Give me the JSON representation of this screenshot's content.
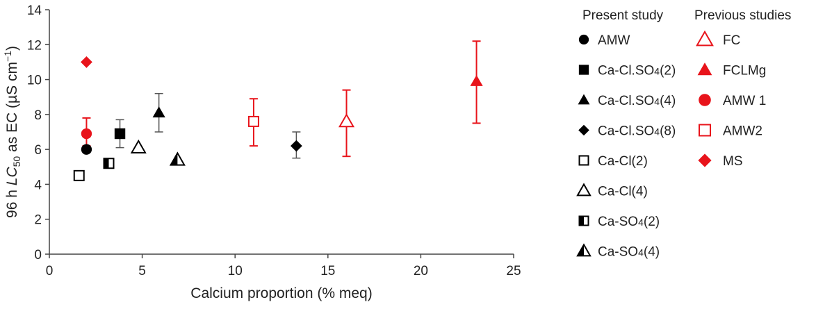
{
  "chart_data": {
    "type": "scatter",
    "xlabel": "Calcium proportion (% meq)",
    "ylabel": "96 h LC50 as EC (µS cm−1)",
    "ylabel_parts": {
      "pre": "96 h ",
      "lc": "LC",
      "sub": "50",
      "post": " as EC (µS cm",
      "sup": "−1",
      "close": ")"
    },
    "xlim": [
      0,
      25
    ],
    "ylim": [
      0,
      14
    ],
    "xticks": [
      0,
      5,
      10,
      15,
      20,
      25
    ],
    "yticks": [
      0,
      2,
      4,
      6,
      8,
      10,
      12,
      14
    ],
    "grid": false,
    "legend_placement": "right",
    "legend_groups": [
      "Present study",
      "Previous studies"
    ],
    "colors": {
      "black": "#000000",
      "red": "#e8141b",
      "errorbar_gray": "#555555"
    },
    "series": [
      {
        "name": "AMW",
        "group": "Present study",
        "marker": "circle-filled",
        "color": "#000000",
        "points": [
          {
            "x": 2.0,
            "y": 6.0
          }
        ]
      },
      {
        "name": "Ca-Cl.SO4(2)",
        "group": "Present study",
        "marker": "square-filled",
        "color": "#000000",
        "points": [
          {
            "x": 3.8,
            "y": 6.9,
            "ylow": 6.1,
            "yhigh": 7.7
          }
        ]
      },
      {
        "name": "Ca-Cl.SO4(4)",
        "group": "Present study",
        "marker": "triangle-filled",
        "color": "#000000",
        "points": [
          {
            "x": 5.9,
            "y": 8.1,
            "ylow": 7.0,
            "yhigh": 9.2
          }
        ]
      },
      {
        "name": "Ca-Cl.SO4(8)",
        "group": "Present study",
        "marker": "diamond-filled",
        "color": "#000000",
        "points": [
          {
            "x": 13.3,
            "y": 6.2,
            "ylow": 5.5,
            "yhigh": 7.0
          }
        ]
      },
      {
        "name": "Ca-Cl(2)",
        "group": "Present study",
        "marker": "square-open",
        "color": "#000000",
        "points": [
          {
            "x": 1.6,
            "y": 4.5
          }
        ]
      },
      {
        "name": "Ca-Cl(4)",
        "group": "Present study",
        "marker": "triangle-open",
        "color": "#000000",
        "points": [
          {
            "x": 4.8,
            "y": 6.1
          }
        ]
      },
      {
        "name": "Ca-SO4(2)",
        "group": "Present study",
        "marker": "square-half",
        "color": "#000000",
        "points": [
          {
            "x": 3.2,
            "y": 5.2
          }
        ]
      },
      {
        "name": "Ca-SO4(4)",
        "group": "Present study",
        "marker": "triangle-half",
        "color": "#000000",
        "points": [
          {
            "x": 6.9,
            "y": 5.4
          }
        ]
      },
      {
        "name": "FC",
        "group": "Previous studies",
        "marker": "triangle-open",
        "color": "#e8141b",
        "points": [
          {
            "x": 16.0,
            "y": 7.6,
            "ylow": 5.6,
            "yhigh": 9.4
          }
        ]
      },
      {
        "name": "FCLMg",
        "group": "Previous studies",
        "marker": "triangle-filled",
        "color": "#e8141b",
        "points": [
          {
            "x": 23.0,
            "y": 9.9,
            "ylow": 7.5,
            "yhigh": 12.2
          }
        ]
      },
      {
        "name": "AMW 1",
        "group": "Previous studies",
        "marker": "circle-filled",
        "color": "#e8141b",
        "points": [
          {
            "x": 2.0,
            "y": 6.9,
            "ylow": 6.2,
            "yhigh": 7.8
          }
        ]
      },
      {
        "name": "AMW2",
        "group": "Previous studies",
        "marker": "square-open",
        "color": "#e8141b",
        "points": [
          {
            "x": 11.0,
            "y": 7.6,
            "ylow": 6.2,
            "yhigh": 8.9
          }
        ]
      },
      {
        "name": "MS",
        "group": "Previous studies",
        "marker": "diamond-filled",
        "color": "#e8141b",
        "points": [
          {
            "x": 2.0,
            "y": 11.0
          }
        ]
      }
    ]
  }
}
